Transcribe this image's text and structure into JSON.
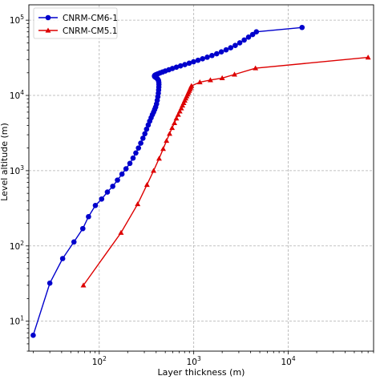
{
  "chart_data": {
    "type": "line",
    "title": "",
    "xlabel": "Layer thickness (m)",
    "ylabel": "Level altitude (m)",
    "xscale": "log",
    "yscale": "log",
    "xlim": [
      18,
      80000
    ],
    "ylim": [
      4,
      160000
    ],
    "xticks": [
      {
        "value": 100,
        "base": "10",
        "exp": "2"
      },
      {
        "value": 1000,
        "base": "10",
        "exp": "3"
      },
      {
        "value": 10000,
        "base": "10",
        "exp": "4"
      }
    ],
    "yticks": [
      {
        "value": 10,
        "base": "10",
        "exp": "1"
      },
      {
        "value": 100,
        "base": "10",
        "exp": "2"
      },
      {
        "value": 1000,
        "base": "10",
        "exp": "3"
      },
      {
        "value": 10000,
        "base": "10",
        "exp": "4"
      },
      {
        "value": 100000,
        "base": "10",
        "exp": "5"
      }
    ],
    "grid": true,
    "legend_position": "top-left",
    "series": [
      {
        "name": "CNRM-CM6-1",
        "color": "#0000cc",
        "marker": "circle",
        "x": [
          20,
          30,
          41,
          54,
          67,
          77,
          91,
          106,
          122,
          139,
          156,
          174,
          192,
          211,
          228,
          244,
          260,
          275,
          290,
          304,
          317,
          330,
          342,
          354,
          365,
          376,
          386,
          395,
          404,
          411,
          417,
          422,
          425,
          427,
          428,
          427,
          424,
          418,
          410,
          400,
          392,
          386,
          384,
          386,
          392,
          402,
          418,
          440,
          468,
          500,
          545,
          595,
          655,
          725,
          805,
          895,
          995,
          1110,
          1240,
          1390,
          1560,
          1750,
          1960,
          2200,
          2460,
          2750,
          3070,
          3420,
          3800,
          4200,
          4600,
          14000
        ],
        "y": [
          6.5,
          32,
          68,
          113,
          170,
          245,
          345,
          420,
          520,
          620,
          750,
          900,
          1060,
          1250,
          1470,
          1720,
          2000,
          2320,
          2700,
          3100,
          3560,
          4050,
          4550,
          5050,
          5550,
          6000,
          6500,
          7000,
          7700,
          8600,
          9600,
          10700,
          11800,
          12900,
          14000,
          14900,
          15700,
          16300,
          16800,
          17200,
          17500,
          17800,
          18100,
          18400,
          18700,
          19000,
          19400,
          19900,
          20500,
          21100,
          21900,
          22800,
          23700,
          24700,
          25700,
          26800,
          28000,
          29300,
          30700,
          32200,
          33900,
          35800,
          37900,
          40300,
          43000,
          46200,
          50000,
          54500,
          59500,
          64500,
          70000,
          80000
        ]
      },
      {
        "name": "CNRM-CM5.1",
        "color": "#dd0000",
        "marker": "triangle",
        "x": [
          68,
          170,
          255,
          320,
          376,
          430,
          475,
          515,
          555,
          590,
          625,
          655,
          685,
          712,
          738,
          760,
          782,
          803,
          823,
          843,
          862,
          880,
          897,
          914,
          930,
          945,
          1160,
          1500,
          2000,
          2700,
          4500,
          70000
        ],
        "y": [
          30,
          150,
          360,
          650,
          1000,
          1450,
          1950,
          2500,
          3100,
          3700,
          4300,
          4950,
          5550,
          6150,
          6750,
          7350,
          7950,
          8550,
          9150,
          9750,
          10350,
          10950,
          11550,
          12150,
          12750,
          13400,
          15000,
          16000,
          17000,
          19000,
          23000,
          32000
        ]
      }
    ]
  }
}
